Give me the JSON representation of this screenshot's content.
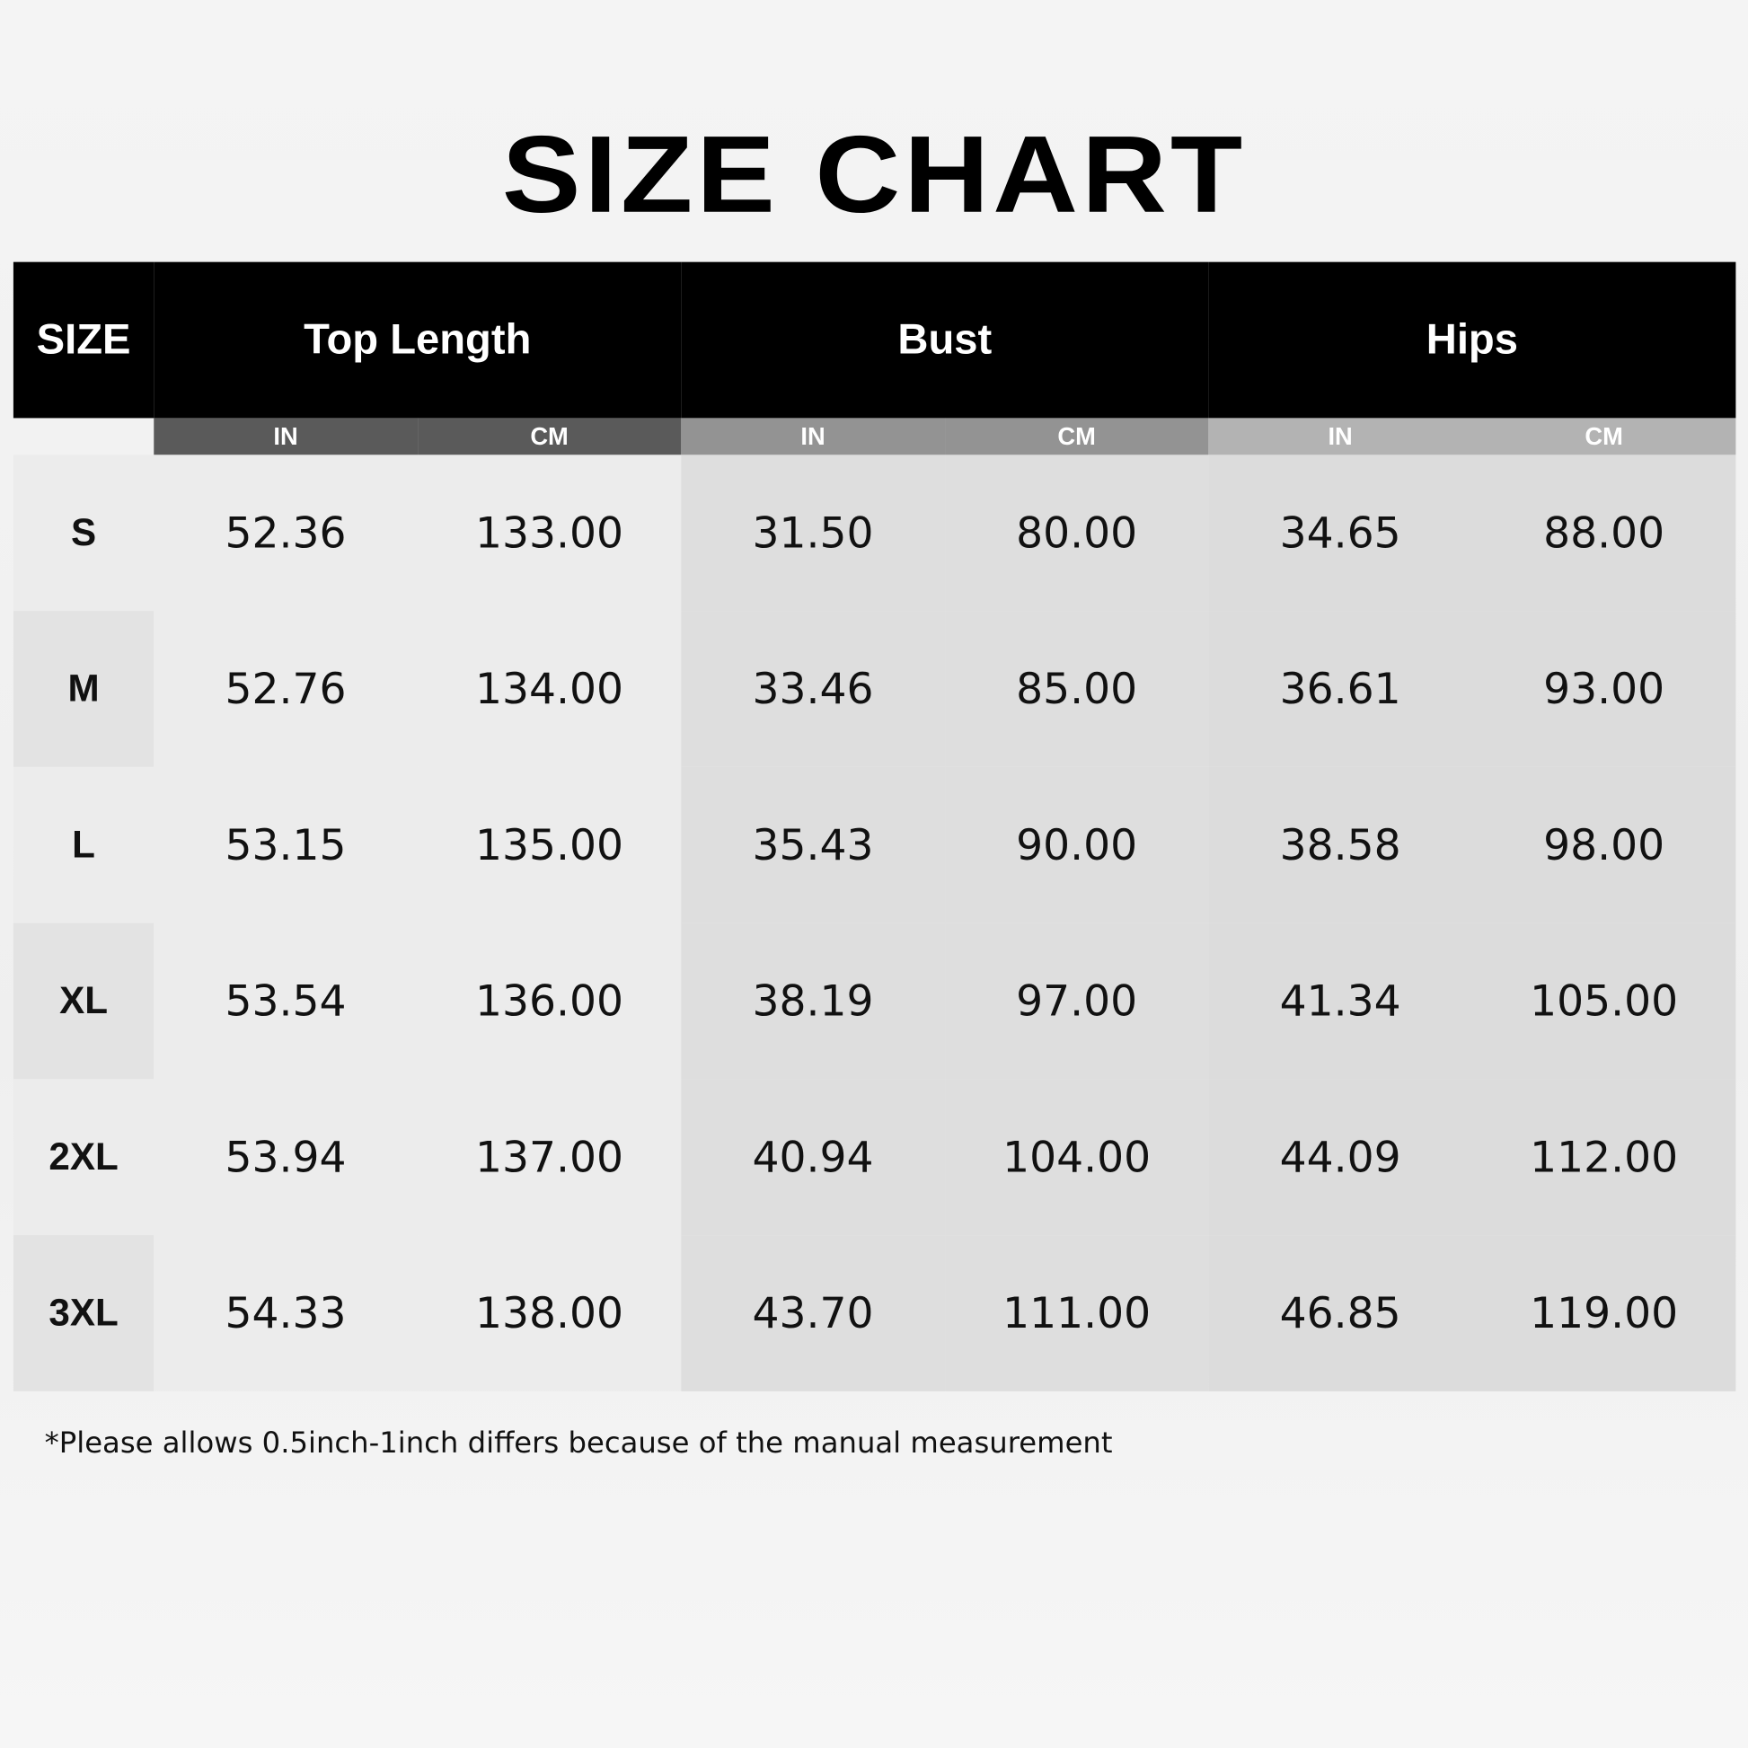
{
  "title": "SIZE CHART",
  "headers": {
    "size": "SIZE",
    "top_length": "Top Length",
    "bust": "Bust",
    "hips": "Hips",
    "in": "IN",
    "cm": "CM"
  },
  "rows": [
    {
      "size": "S",
      "tl_in": "52.36",
      "tl_cm": "133.00",
      "b_in": "31.50",
      "b_cm": "80.00",
      "h_in": "34.65",
      "h_cm": "88.00"
    },
    {
      "size": "M",
      "tl_in": "52.76",
      "tl_cm": "134.00",
      "b_in": "33.46",
      "b_cm": "85.00",
      "h_in": "36.61",
      "h_cm": "93.00"
    },
    {
      "size": "L",
      "tl_in": "53.15",
      "tl_cm": "135.00",
      "b_in": "35.43",
      "b_cm": "90.00",
      "h_in": "38.58",
      "h_cm": "98.00"
    },
    {
      "size": "XL",
      "tl_in": "53.54",
      "tl_cm": "136.00",
      "b_in": "38.19",
      "b_cm": "97.00",
      "h_in": "41.34",
      "h_cm": "105.00"
    },
    {
      "size": "2XL",
      "tl_in": "53.94",
      "tl_cm": "137.00",
      "b_in": "40.94",
      "b_cm": "104.00",
      "h_in": "44.09",
      "h_cm": "112.00"
    },
    {
      "size": "3XL",
      "tl_in": "54.33",
      "tl_cm": "138.00",
      "b_in": "43.70",
      "b_cm": "111.00",
      "h_in": "46.85",
      "h_cm": "119.00"
    }
  ],
  "note": "*Please allows 0.5inch-1inch differs because of the manual measurement"
}
